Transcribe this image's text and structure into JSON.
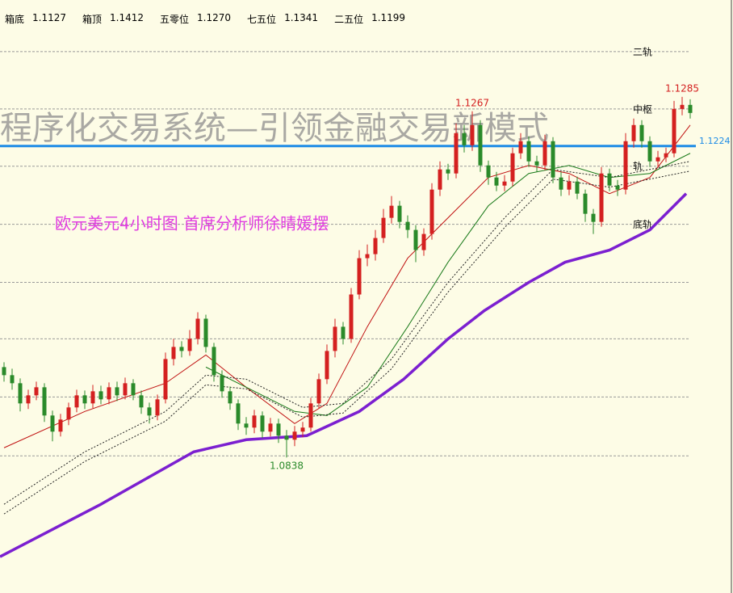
{
  "header": [
    {
      "label": "箱底",
      "value": "1.1127"
    },
    {
      "label": "箱顶",
      "value": "1.1412"
    },
    {
      "label": "五零位",
      "value": "1.1270"
    },
    {
      "label": "七五位",
      "value": "1.1341"
    },
    {
      "label": "二五位",
      "value": "1.1199"
    }
  ],
  "chart_data": {
    "type": "candlestick",
    "watermark": "程序化交易系统—引领金融交易新模式",
    "subtitle": "欧元美元4小时图  首席分析师徐晴媛摆",
    "ylim": [
      1.067,
      1.1405
    ],
    "up_color": "#d42020",
    "down_color": "#2a8a2a",
    "candles": [
      [
        1.095,
        1.0956,
        1.0932,
        1.094
      ],
      [
        1.094,
        1.0948,
        1.0922,
        1.093
      ],
      [
        1.093,
        1.0936,
        1.0895,
        1.0905
      ],
      [
        1.0905,
        1.0922,
        1.0898,
        1.0915
      ],
      [
        1.0915,
        1.0932,
        1.0909,
        1.0925
      ],
      [
        1.0925,
        1.093,
        1.0882,
        1.089
      ],
      [
        1.089,
        1.0896,
        1.0858,
        1.087
      ],
      [
        1.087,
        1.0892,
        1.0864,
        1.0885
      ],
      [
        1.0885,
        1.0906,
        1.0878,
        1.09
      ],
      [
        1.09,
        1.0922,
        1.0894,
        1.0915
      ],
      [
        1.0915,
        1.0921,
        1.0898,
        1.0905
      ],
      [
        1.0905,
        1.0928,
        1.0899,
        1.092
      ],
      [
        1.092,
        1.0927,
        1.0904,
        1.091
      ],
      [
        1.091,
        1.0931,
        1.0904,
        1.0925
      ],
      [
        1.0925,
        1.0932,
        1.0908,
        1.0915
      ],
      [
        1.0915,
        1.0937,
        1.091,
        1.093
      ],
      [
        1.093,
        1.0935,
        1.0909,
        1.0915
      ],
      [
        1.0915,
        1.0921,
        1.0892,
        1.09
      ],
      [
        1.09,
        1.0906,
        1.088,
        1.089
      ],
      [
        1.089,
        1.0916,
        1.0884,
        1.091
      ],
      [
        1.091,
        1.0968,
        1.0905,
        1.096
      ],
      [
        1.096,
        1.0985,
        1.0952,
        1.0975
      ],
      [
        1.0975,
        1.0982,
        1.0962,
        1.097
      ],
      [
        1.097,
        1.0996,
        1.0964,
        1.0985
      ],
      [
        1.0985,
        1.1018,
        1.0978,
        1.101
      ],
      [
        1.101,
        1.1015,
        1.0968,
        1.0975
      ],
      [
        1.0975,
        1.098,
        1.0932,
        1.094
      ],
      [
        1.094,
        1.0946,
        1.0912,
        1.092
      ],
      [
        1.092,
        1.0926,
        1.0897,
        1.0905
      ],
      [
        1.0905,
        1.091,
        1.0872,
        1.088
      ],
      [
        1.088,
        1.0888,
        1.0866,
        1.0875
      ],
      [
        1.0875,
        1.0897,
        1.0868,
        1.089
      ],
      [
        1.089,
        1.0895,
        1.0862,
        1.087
      ],
      [
        1.087,
        1.0887,
        1.0864,
        1.088
      ],
      [
        1.088,
        1.0886,
        1.0856,
        1.0865
      ],
      [
        1.0865,
        1.0872,
        1.0838,
        1.086
      ],
      [
        1.086,
        1.0877,
        1.0852,
        1.087
      ],
      [
        1.087,
        1.0882,
        1.0863,
        1.0875
      ],
      [
        1.0875,
        1.0912,
        1.087,
        1.0905
      ],
      [
        1.0905,
        1.0942,
        1.0899,
        1.0935
      ],
      [
        1.0935,
        1.0978,
        1.0929,
        1.097
      ],
      [
        1.097,
        1.101,
        1.0962,
        1.1
      ],
      [
        1.1,
        1.1006,
        1.0978,
        1.0985
      ],
      [
        1.0985,
        1.1048,
        1.098,
        1.104
      ],
      [
        1.104,
        1.1095,
        1.1034,
        1.1085
      ],
      [
        1.1085,
        1.1102,
        1.1075,
        1.109
      ],
      [
        1.109,
        1.112,
        1.1082,
        1.111
      ],
      [
        1.111,
        1.1146,
        1.1104,
        1.1135
      ],
      [
        1.1135,
        1.1162,
        1.1128,
        1.115
      ],
      [
        1.115,
        1.1156,
        1.1122,
        1.113
      ],
      [
        1.113,
        1.1138,
        1.111,
        1.112
      ],
      [
        1.112,
        1.1126,
        1.108,
        1.1095
      ],
      [
        1.1095,
        1.1122,
        1.1088,
        1.1115
      ],
      [
        1.1115,
        1.1178,
        1.1108,
        1.117
      ],
      [
        1.117,
        1.1205,
        1.1162,
        1.1195
      ],
      [
        1.1195,
        1.1202,
        1.1182,
        1.119
      ],
      [
        1.119,
        1.1252,
        1.1184,
        1.124
      ],
      [
        1.124,
        1.125,
        1.1216,
        1.1225
      ],
      [
        1.1225,
        1.1267,
        1.1218,
        1.125
      ],
      [
        1.125,
        1.1256,
        1.1192,
        1.12
      ],
      [
        1.12,
        1.1206,
        1.1176,
        1.1185
      ],
      [
        1.1185,
        1.1192,
        1.1168,
        1.1175
      ],
      [
        1.1175,
        1.1188,
        1.1168,
        1.118
      ],
      [
        1.118,
        1.1222,
        1.1174,
        1.1215
      ],
      [
        1.1215,
        1.124,
        1.1208,
        1.123
      ],
      [
        1.123,
        1.1236,
        1.1198,
        1.1205
      ],
      [
        1.1205,
        1.1212,
        1.1192,
        1.12
      ],
      [
        1.12,
        1.1238,
        1.1194,
        1.123
      ],
      [
        1.123,
        1.1235,
        1.1178,
        1.1185
      ],
      [
        1.1185,
        1.1192,
        1.1162,
        1.117
      ],
      [
        1.117,
        1.1188,
        1.1163,
        1.118
      ],
      [
        1.118,
        1.1186,
        1.1158,
        1.1165
      ],
      [
        1.1165,
        1.117,
        1.113,
        1.114
      ],
      [
        1.114,
        1.1146,
        1.1115,
        1.113
      ],
      [
        1.113,
        1.1198,
        1.1124,
        1.119
      ],
      [
        1.119,
        1.1196,
        1.1168,
        1.1175
      ],
      [
        1.1175,
        1.1182,
        1.1162,
        1.117
      ],
      [
        1.117,
        1.124,
        1.1164,
        1.123
      ],
      [
        1.123,
        1.1258,
        1.1222,
        1.125
      ],
      [
        1.125,
        1.1256,
        1.1222,
        1.123
      ],
      [
        1.123,
        1.1236,
        1.1198,
        1.1205
      ],
      [
        1.1205,
        1.1218,
        1.1198,
        1.121
      ],
      [
        1.121,
        1.1222,
        1.1204,
        1.1215
      ],
      [
        1.1215,
        1.128,
        1.121,
        1.127
      ],
      [
        1.127,
        1.1285,
        1.1262,
        1.1275
      ],
      [
        1.1275,
        1.1282,
        1.1258,
        1.1265
      ]
    ],
    "lines": [
      {
        "color": "#7b1fd0",
        "width": 3.5,
        "x": [
          -0.5,
          12,
          23.5,
          30,
          37.5,
          44,
          49.5,
          55,
          59.5,
          65,
          69.5,
          75,
          80,
          84.5
        ],
        "values": [
          1.0715,
          1.078,
          1.0845,
          1.086,
          1.0865,
          1.0895,
          1.0935,
          1.0985,
          1.102,
          1.1055,
          1.108,
          1.1095,
          1.112,
          1.1165
        ]
      },
      {
        "color": "#c01010",
        "width": 1,
        "x": [
          0,
          10,
          20,
          25,
          30,
          36,
          40,
          45,
          50,
          55,
          60,
          65,
          70,
          75,
          80,
          85
        ],
        "values": [
          1.085,
          1.0895,
          1.093,
          1.0965,
          1.0925,
          1.088,
          1.0905,
          1.1,
          1.1085,
          1.1135,
          1.1185,
          1.12,
          1.119,
          1.1165,
          1.1185,
          1.125
        ]
      },
      {
        "color": "#1a7a1a",
        "width": 1,
        "x": [
          25,
          30,
          36,
          40,
          45,
          50,
          55,
          60,
          65,
          70,
          75,
          80,
          85
        ],
        "values": [
          1.095,
          1.0925,
          1.0895,
          1.089,
          1.0925,
          1.1,
          1.108,
          1.115,
          1.119,
          1.12,
          1.1185,
          1.119,
          1.1215
        ]
      },
      {
        "color": "#222222",
        "width": 1,
        "dashed": true,
        "x": [
          0,
          10,
          20,
          25,
          30,
          37,
          42,
          48,
          55,
          62,
          68,
          75,
          85
        ],
        "values": [
          1.078,
          1.0845,
          1.0895,
          1.094,
          1.0935,
          1.09,
          1.0905,
          1.096,
          1.1055,
          1.1135,
          1.1195,
          1.1185,
          1.1205
        ]
      },
      {
        "color": "#222222",
        "width": 1,
        "dashed": true,
        "x": [
          0,
          10,
          20,
          25,
          30,
          37,
          42,
          48,
          55,
          62,
          68,
          75,
          85
        ],
        "values": [
          1.0768,
          1.0833,
          1.0883,
          1.0928,
          1.0923,
          1.0888,
          1.0893,
          1.0948,
          1.1043,
          1.1123,
          1.1183,
          1.1173,
          1.1193
        ]
      }
    ],
    "levels": [
      {
        "value": 1.1341,
        "label": "二轨"
      },
      {
        "value": 1.127,
        "label": "中枢"
      },
      {
        "value": 1.1199,
        "label": "轨"
      },
      {
        "value": 1.1127,
        "label": "底轨"
      },
      {
        "value": 1.1055
      },
      {
        "value": 1.0985
      },
      {
        "value": 1.0913
      },
      {
        "value": 1.084
      }
    ],
    "price_line": {
      "value": 1.1224,
      "label": "1.1224",
      "color": "#1e8ce6"
    },
    "annotations": [
      {
        "text": "1.1267",
        "x": 58,
        "y": 1.1267,
        "color": "#d42020"
      },
      {
        "text": "1.0838",
        "x": 35,
        "y": 1.0838,
        "color": "#2a8a2a"
      },
      {
        "text": "1.1285",
        "x": 84,
        "y": 1.1285,
        "color": "#d42020"
      }
    ]
  }
}
